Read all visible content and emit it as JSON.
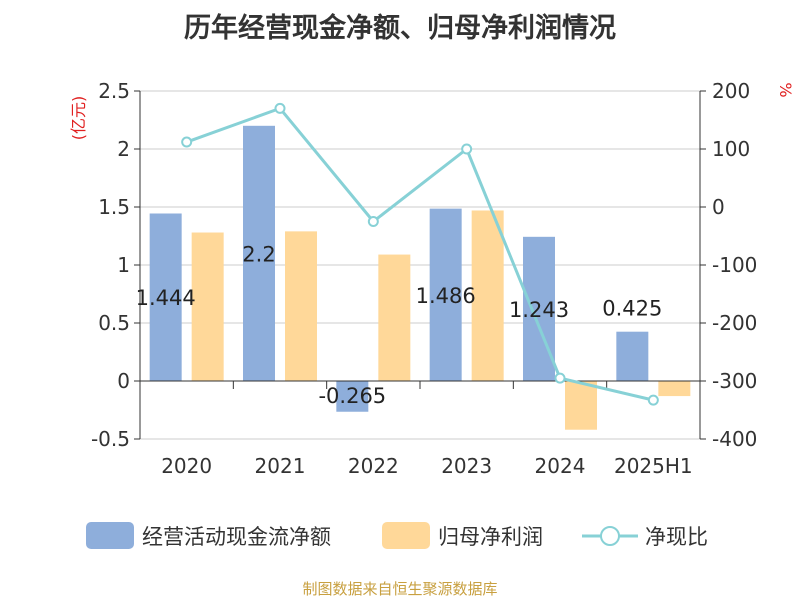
{
  "chart_data": {
    "type": "bar",
    "title": "历年经营现金净额、归母净利润情况",
    "left_unit": "(亿元)",
    "right_unit": "%",
    "categories": [
      "2020",
      "2021",
      "2022",
      "2023",
      "2024",
      "2025H1"
    ],
    "series": [
      {
        "name": "经营活动现金流净额",
        "kind": "bar",
        "axis": "left",
        "color": "#8eaedb",
        "values": [
          1.444,
          2.2,
          -0.265,
          1.486,
          1.243,
          0.425
        ]
      },
      {
        "name": "归母净利润",
        "kind": "bar",
        "axis": "left",
        "color": "#ffd899",
        "values": [
          1.28,
          1.29,
          1.09,
          1.47,
          -0.42,
          -0.13
        ]
      },
      {
        "name": "净现比",
        "kind": "line",
        "axis": "right",
        "color": "#87d1d6",
        "values": [
          112,
          170,
          -25,
          100,
          -295,
          -333
        ]
      }
    ],
    "data_labels": [
      "1.444",
      "2.2",
      "-0.265",
      "1.486",
      "1.243",
      "0.425"
    ],
    "y_left": {
      "min": -0.5,
      "max": 2.5,
      "ticks": [
        "-0.5",
        "0",
        "0.5",
        "1",
        "1.5",
        "2",
        "2.5"
      ]
    },
    "y_right": {
      "min": -400,
      "max": 200,
      "ticks": [
        "-400",
        "-300",
        "-200",
        "-100",
        "0",
        "100",
        "200"
      ]
    },
    "grid": true,
    "legend_position": "bottom"
  },
  "source_note": "制图数据来自恒生聚源数据库"
}
